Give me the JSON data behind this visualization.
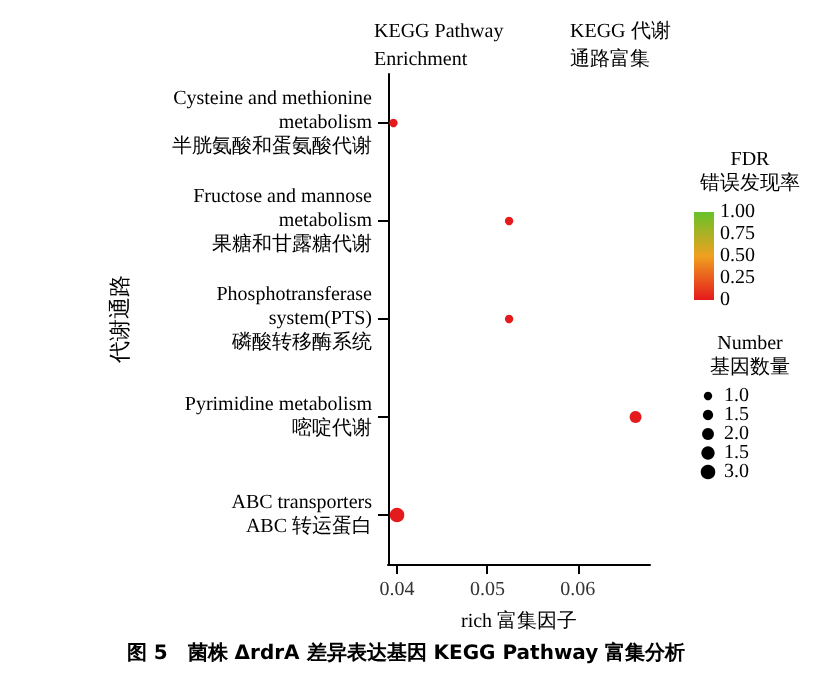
{
  "chart_data": {
    "type": "bubble",
    "title": "KEGG Pathway Enrichment",
    "subtitle": "KEGG 代谢通路富集",
    "xlabel": "rich 富集因子",
    "ylabel": "代谢通路",
    "orientation": "horizontal",
    "categories": [
      "Cysteine and methionine\nmetabolism\n半胱氨酸和蛋氨酸代谢",
      "Fructose and mannose\nmetabolism\n果糖和甘露糖代谢",
      "Phosphotransferase\nsystem(PTS)\n磷酸转移酶系统",
      "Pyrimidine metabolism\n嘧啶代谢",
      "ABC transporters\nABC 转运蛋白"
    ],
    "values": [
      0.0396,
      0.0524,
      0.0524,
      0.0664,
      0.04
    ],
    "sizes": [
      1,
      1,
      1,
      2,
      3
    ],
    "cvalues": [
      0,
      0,
      0,
      0,
      0
    ],
    "xlim": [
      0.039,
      0.068
    ],
    "xticks": [
      0.04,
      0.05,
      0.06
    ],
    "clabel": "FDR\n错误发现率",
    "clim": [
      0,
      1
    ],
    "cticks": [
      {
        "value": 1,
        "label": "1.00"
      },
      {
        "value": 0.75,
        "label": "0.75"
      },
      {
        "value": 0.5,
        "label": "0.50"
      },
      {
        "value": 0.25,
        "label": "0.25"
      },
      {
        "value": 0,
        "label": "0"
      }
    ],
    "legend_title": "Number\n基因数量",
    "size_legend": [
      {
        "value": 1,
        "label": "1.0"
      },
      {
        "value": 1.5,
        "label": "1.5"
      },
      {
        "value": 2,
        "label": "2.0"
      },
      {
        "value": 2.5,
        "label": "1.5"
      },
      {
        "value": 3,
        "label": "3.0"
      }
    ],
    "grid": false,
    "annotations": [
      "图 5　菌株 ΔrdrA 差异表达基因 KEGG Pathway 富集分析"
    ]
  }
}
